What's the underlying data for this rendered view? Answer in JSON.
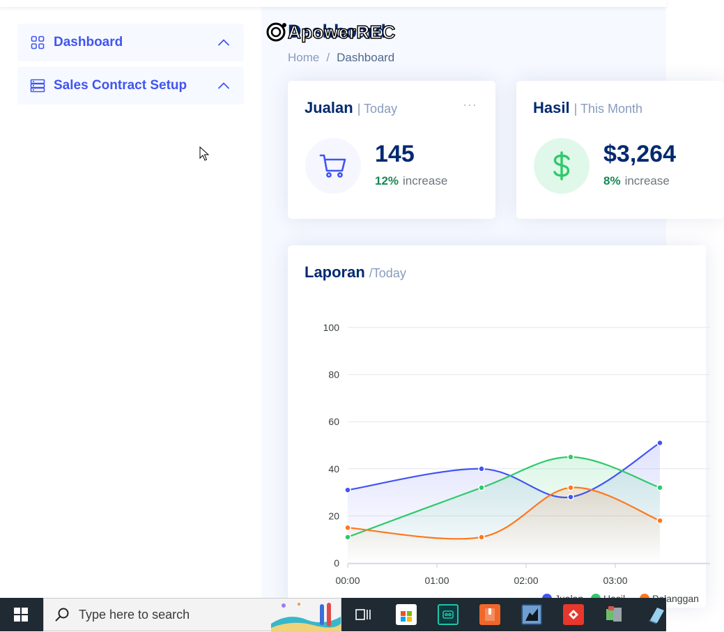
{
  "watermark": {
    "text": "ApowerREC"
  },
  "sidebar": {
    "items": [
      {
        "label": "Dashboard",
        "icon": "grid-icon"
      },
      {
        "label": "Sales Contract Setup",
        "icon": "server-icon"
      }
    ]
  },
  "page": {
    "title": "Dashboard",
    "breadcrumb": {
      "home": "Home",
      "separator": "/",
      "current": "Dashboard"
    }
  },
  "cards": {
    "sales": {
      "title": "Jualan",
      "filter": "| Today",
      "value": "145",
      "percent": "12%",
      "percent_label": "increase",
      "menu": "···"
    },
    "revenue": {
      "title": "Hasil",
      "filter": "| This Month",
      "value": "$3,264",
      "percent": "8%",
      "percent_label": "increase"
    }
  },
  "report": {
    "title": "Laporan",
    "filter": "/Today"
  },
  "colors": {
    "primary": "#4154f1",
    "navy": "#012970",
    "green": "#2eca6a",
    "orange": "#ff771d",
    "success": "#198754",
    "muted": "#899bbd"
  },
  "chart_data": {
    "type": "area",
    "x": [
      "00:00",
      "01:00",
      "02:00",
      "03:00"
    ],
    "x_points_hours": [
      0,
      1.5,
      2.5,
      3.5
    ],
    "ylim": [
      0,
      100
    ],
    "yticks": [
      "0",
      "20",
      "40",
      "60",
      "80",
      "100"
    ],
    "series": [
      {
        "name": "Jualan",
        "color": "#4154f1",
        "values": [
          31,
          40,
          28,
          51
        ]
      },
      {
        "name": "Hasil",
        "color": "#2eca6a",
        "values": [
          11,
          32,
          45,
          32
        ]
      },
      {
        "name": "Pelanggan",
        "color": "#ff771d",
        "values": [
          15,
          11,
          32,
          18
        ]
      }
    ],
    "legend": "bottom"
  },
  "taskbar": {
    "search_placeholder": "Type here to search"
  }
}
